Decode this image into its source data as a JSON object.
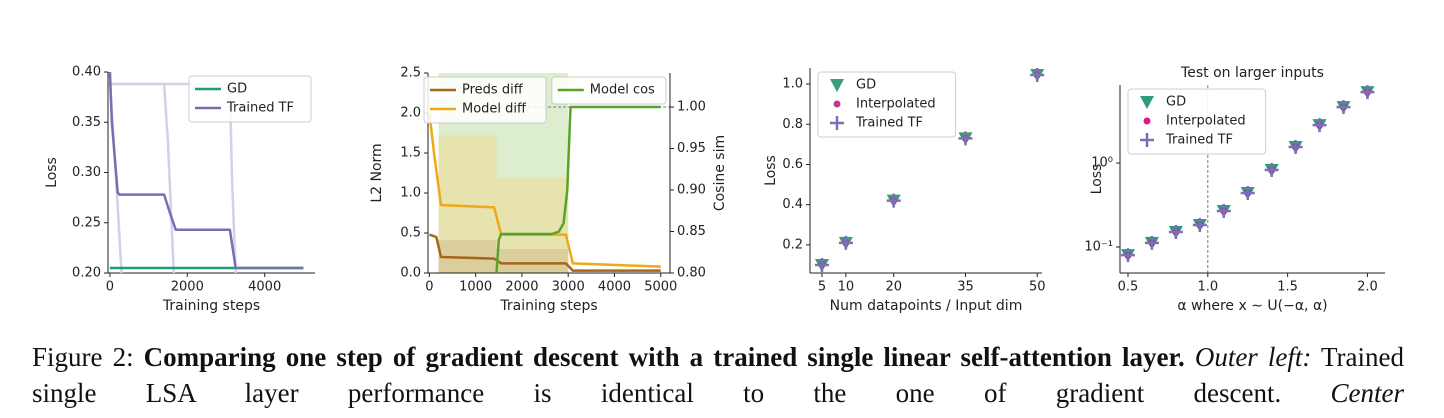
{
  "chart_data": [
    {
      "type": "line",
      "xlabel": "Training steps",
      "ylabel": "Loss",
      "xlim": [
        -50,
        5300
      ],
      "xticks": [
        0,
        2000,
        4000
      ],
      "ylim": [
        0.2,
        0.4
      ],
      "yticks": [
        {
          "value": 0.2,
          "label": "0.20"
        },
        0.25,
        {
          "value": 0.3,
          "label": "0.30"
        },
        0.35,
        {
          "value": 0.4,
          "label": "0.40"
        }
      ],
      "legend": "upper right",
      "series": [
        {
          "color": "#d3d1e6",
          "x": [
            0,
            150,
            300
          ],
          "values": [
            0.39,
            0.3,
            0.2
          ]
        },
        {
          "color": "#d3d1e6",
          "x": [
            0,
            1400,
            1500,
            1650
          ],
          "values": [
            0.388,
            0.388,
            0.33,
            0.2
          ]
        },
        {
          "color": "#d3d1e6",
          "x": [
            0,
            3100,
            3150,
            3250
          ],
          "values": [
            0.388,
            0.388,
            0.3,
            0.2
          ]
        },
        {
          "name": "GD",
          "color": "#1b9e77",
          "x": [
            0,
            5000
          ],
          "values": [
            0.205,
            0.205
          ]
        },
        {
          "name": "Trained TF",
          "color": "#7570b3",
          "x": [
            0,
            50,
            200,
            250,
            1400,
            1550,
            1700,
            3100,
            3250,
            5000
          ],
          "values": [
            0.4,
            0.35,
            0.28,
            0.278,
            0.278,
            0.26,
            0.243,
            0.243,
            0.205,
            0.205
          ]
        }
      ]
    },
    {
      "type": "line",
      "xlabel": "Training steps",
      "ylabel": "L2 Norm",
      "y2label": "Cosine sim",
      "xlim": [
        -30,
        5200
      ],
      "xticks": [
        0,
        1000,
        2000,
        3000,
        4000,
        5000
      ],
      "ylim": [
        0,
        2.5
      ],
      "yticks": [
        {
          "value": 0,
          "label": "0.0"
        },
        0.5,
        {
          "value": 1,
          "label": "1.0"
        },
        1.5,
        {
          "value": 2,
          "label": "2.0"
        },
        2.5
      ],
      "y2lim": [
        0.8,
        1.041
      ],
      "y2ticks": [
        {
          "value": 0.8,
          "label": "0.80"
        },
        0.85,
        {
          "value": 0.9,
          "label": "0.90"
        },
        0.95,
        {
          "value": 1,
          "label": "1.00"
        }
      ],
      "legend": "upper left",
      "legend2": "upper right",
      "bands": [
        {
          "color": "#d6ebc6",
          "axis": "y2",
          "x": [
            200,
            3000
          ],
          "lower": [
            0.8,
            0.8
          ],
          "upper": [
            1.041,
            1.041
          ]
        },
        {
          "color": "#e8e0a8",
          "x": [
            200,
            1450,
            1450,
            3000
          ],
          "lower": [
            0,
            0,
            0,
            0
          ],
          "upper": [
            1.72,
            1.72,
            1.19,
            1.19
          ]
        },
        {
          "color": "#d9c99a",
          "x": [
            200,
            1450,
            1450,
            3000
          ],
          "lower": [
            0,
            0,
            0,
            0
          ],
          "upper": [
            0.41,
            0.41,
            0.3,
            0.3
          ]
        }
      ],
      "reference_lines": [
        {
          "axis": "y2",
          "y": 1,
          "x": [
            1700,
            5200
          ]
        }
      ],
      "series": [
        {
          "name": "Preds diff",
          "color": "#a6661c",
          "x": [
            0,
            150,
            250,
            1400,
            1550,
            2950,
            3100,
            5000
          ],
          "values": [
            0.48,
            0.45,
            0.2,
            0.18,
            0.12,
            0.12,
            0.03,
            0.03
          ]
        },
        {
          "name": "Model diff",
          "color": "#eda916",
          "x": [
            0,
            100,
            250,
            1400,
            1550,
            2950,
            3100,
            5000
          ],
          "values": [
            2.0,
            1.5,
            0.85,
            0.82,
            0.48,
            0.48,
            0.12,
            0.08
          ]
        },
        {
          "name": "Model cos",
          "color": "#5ba22a",
          "axis": "y2",
          "x": [
            1450,
            1500,
            1550,
            2650,
            2800,
            2900,
            2980,
            3050,
            5000
          ],
          "values": [
            0.8,
            0.84,
            0.847,
            0.847,
            0.85,
            0.86,
            0.9,
            1.0,
            1.0
          ]
        }
      ]
    },
    {
      "type": "scatter",
      "xlabel": "Num datapoints / Input dim",
      "ylabel": "Loss",
      "xlim": [
        2.5,
        51
      ],
      "xticks": [
        5,
        10,
        20,
        35,
        50
      ],
      "ylim": [
        0.06,
        1.08
      ],
      "yticks": [
        0.2,
        0.4,
        0.6,
        0.8,
        {
          "value": 1,
          "label": "1.0"
        }
      ],
      "legend": "upper left",
      "series": [
        {
          "name": "GD",
          "color": "#3a9c78",
          "marker": "triangle",
          "x": [
            5,
            10,
            20,
            35,
            50
          ],
          "values": [
            0.1,
            0.21,
            0.42,
            0.73,
            1.045
          ]
        },
        {
          "name": "Interpolated",
          "color": "#c0398f",
          "marker": "dot",
          "x": [
            5,
            10,
            20,
            35,
            50
          ],
          "values": [
            0.1,
            0.21,
            0.42,
            0.73,
            1.045
          ]
        },
        {
          "name": "Trained TF",
          "color": "#7a70b5",
          "marker": "plus",
          "x": [
            5,
            10,
            20,
            35,
            50
          ],
          "values": [
            0.1,
            0.21,
            0.42,
            0.73,
            1.045
          ]
        }
      ]
    },
    {
      "type": "scatter",
      "title": "Test on larger inputs",
      "xlabel": "α   where x ∼ U(−α, α)",
      "ylabel": "Loss",
      "xlim": [
        0.45,
        2.11
      ],
      "xticks": [
        0.5,
        {
          "value": 1,
          "label": "1.0"
        },
        1.5,
        {
          "value": 2,
          "label": "2.0"
        }
      ],
      "ylog": true,
      "ylim": [
        0.049,
        8.5
      ],
      "yticks": [
        {
          "value": 0.1,
          "label": "10⁻¹"
        },
        {
          "value": 1,
          "label": "10⁰"
        }
      ],
      "legend": "upper left",
      "reference_lines": [
        {
          "x": 1
        }
      ],
      "series": [
        {
          "name": "GD",
          "color": "#2e9a7e",
          "marker": "triangle",
          "x": [
            0.5,
            0.65,
            0.8,
            0.95,
            1.1,
            1.25,
            1.4,
            1.55,
            1.7,
            1.85,
            2.0
          ],
          "values": [
            0.08,
            0.112,
            0.151,
            0.183,
            0.268,
            0.44,
            0.826,
            1.55,
            2.83,
            4.64,
            7.0
          ]
        },
        {
          "name": "Interpolated",
          "color": "#e0168a",
          "marker": "dot",
          "x": [
            0.5,
            0.65,
            0.8,
            0.95,
            1.1,
            1.25,
            1.4,
            1.55,
            1.7,
            1.85,
            2.0
          ],
          "values": [
            0.08,
            0.112,
            0.151,
            0.183,
            0.268,
            0.44,
            0.826,
            1.55,
            2.83,
            4.64,
            7.0
          ]
        },
        {
          "name": "Trained TF",
          "color": "#7a70b5",
          "marker": "plus",
          "x": [
            0.5,
            0.65,
            0.8,
            0.95,
            1.1,
            1.25,
            1.4,
            1.55,
            1.7,
            1.85,
            2.0
          ],
          "values": [
            0.08,
            0.112,
            0.151,
            0.183,
            0.268,
            0.44,
            0.826,
            1.55,
            2.83,
            4.64,
            7.0
          ]
        }
      ]
    }
  ],
  "caption": {
    "label": "Figure 2:",
    "bold": "Comparing one step of gradient descent with a trained single linear self-attention layer.",
    "italic1": "Outer left:",
    "text1": "Trained single LSA layer performance is identical to the one of gradient descent.",
    "italic2": "Center"
  }
}
